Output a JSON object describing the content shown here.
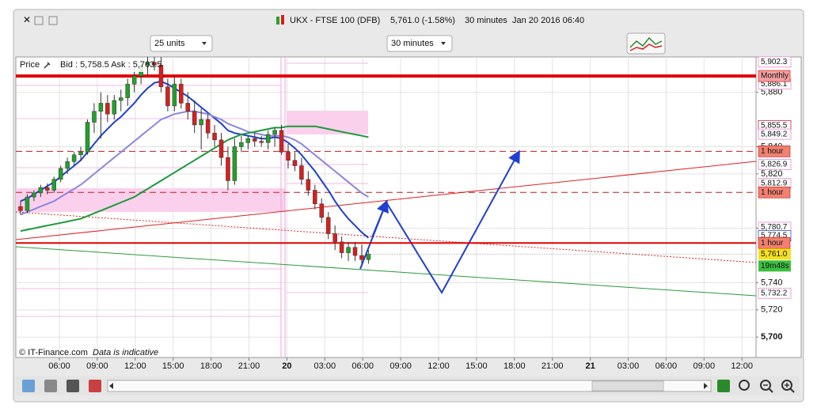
{
  "window": {
    "title": "UKX - FTSE 100 (DFB)",
    "quote": "5,761.0 (-1.58%)",
    "interval": "30 minutes",
    "timestamp": "Jan 20 2016 06:40"
  },
  "toolbar": {
    "units": "25 units",
    "timeframe": "30 minutes"
  },
  "chart_data": {
    "type": "candlestick",
    "price_label": "Price",
    "bid_ask": "Bid : 5,758.5 Ask : 5,763.5",
    "credit": "© IT-Finance.com",
    "disclaimer": "Data is indicative",
    "x_labels": [
      "06:00",
      "09:00",
      "12:00",
      "15:00",
      "18:00",
      "21:00",
      "20",
      "03:00",
      "06:00",
      "09:00",
      "12:00",
      "15:00",
      "18:00",
      "21:00",
      "21",
      "03:00",
      "06:00",
      "09:00",
      "12:00"
    ],
    "ylim": [
      5685,
      5906
    ],
    "yticks": [
      {
        "value": 5880,
        "label": "5,880"
      },
      {
        "value": 5840,
        "label": "5,840"
      },
      {
        "value": 5820,
        "label": "5,820"
      },
      {
        "value": 5780,
        "label": "5,780"
      },
      {
        "value": 5740,
        "label": "5,740"
      },
      {
        "value": 5720,
        "label": "5,720"
      },
      {
        "value": 5700,
        "label": "5,700"
      }
    ],
    "grid": true,
    "up_color": "#23a02b",
    "down_color": "#d42020",
    "candles": [
      [
        5796,
        5800,
        5790,
        5793
      ],
      [
        5793,
        5805,
        5791,
        5803
      ],
      [
        5803,
        5808,
        5800,
        5806
      ],
      [
        5806,
        5812,
        5803,
        5810
      ],
      [
        5810,
        5813,
        5805,
        5808
      ],
      [
        5808,
        5818,
        5806,
        5816
      ],
      [
        5816,
        5826,
        5814,
        5824
      ],
      [
        5824,
        5832,
        5820,
        5829
      ],
      [
        5829,
        5836,
        5826,
        5834
      ],
      [
        5834,
        5840,
        5830,
        5836
      ],
      [
        5836,
        5860,
        5834,
        5858
      ],
      [
        5858,
        5872,
        5850,
        5866
      ],
      [
        5866,
        5880,
        5846,
        5872
      ],
      [
        5872,
        5878,
        5858,
        5864
      ],
      [
        5864,
        5878,
        5860,
        5874
      ],
      [
        5874,
        5882,
        5866,
        5876
      ],
      [
        5876,
        5890,
        5870,
        5886
      ],
      [
        5886,
        5898,
        5880,
        5892
      ],
      [
        5892,
        5904,
        5886,
        5900
      ],
      [
        5900,
        5906,
        5892,
        5902
      ],
      [
        5902,
        5906,
        5896,
        5900
      ],
      [
        5900,
        5906,
        5880,
        5884
      ],
      [
        5884,
        5890,
        5866,
        5870
      ],
      [
        5870,
        5892,
        5866,
        5886
      ],
      [
        5886,
        5890,
        5868,
        5872
      ],
      [
        5872,
        5880,
        5860,
        5866
      ],
      [
        5866,
        5874,
        5850,
        5856
      ],
      [
        5856,
        5868,
        5838,
        5860
      ],
      [
        5860,
        5864,
        5846,
        5850
      ],
      [
        5850,
        5856,
        5840,
        5845
      ],
      [
        5845,
        5850,
        5826,
        5832
      ],
      [
        5832,
        5840,
        5808,
        5815
      ],
      [
        5815,
        5846,
        5812,
        5840
      ],
      [
        5840,
        5848,
        5836,
        5843
      ],
      [
        5843,
        5848,
        5838,
        5846
      ],
      [
        5846,
        5850,
        5840,
        5844
      ],
      [
        5844,
        5848,
        5840,
        5843
      ],
      [
        5843,
        5852,
        5838,
        5849
      ],
      [
        5849,
        5854,
        5840,
        5852
      ],
      [
        5852,
        5856,
        5834,
        5836
      ],
      [
        5836,
        5842,
        5824,
        5830
      ],
      [
        5830,
        5836,
        5822,
        5826
      ],
      [
        5826,
        5832,
        5812,
        5816
      ],
      [
        5816,
        5822,
        5804,
        5808
      ],
      [
        5808,
        5812,
        5794,
        5798
      ],
      [
        5798,
        5802,
        5784,
        5788
      ],
      [
        5788,
        5792,
        5772,
        5776
      ],
      [
        5776,
        5782,
        5764,
        5770
      ],
      [
        5770,
        5774,
        5758,
        5762
      ],
      [
        5762,
        5770,
        5756,
        5766
      ],
      [
        5766,
        5770,
        5756,
        5760
      ],
      [
        5760,
        5768,
        5754,
        5757
      ],
      [
        5757,
        5764,
        5754,
        5761
      ]
    ],
    "series": [
      {
        "color": "#1f3fd0",
        "values": [
          5800,
          5802,
          5805,
          5808,
          5811,
          5814,
          5818,
          5822,
          5826,
          5830,
          5836,
          5842,
          5848,
          5853,
          5858,
          5862,
          5867,
          5872,
          5878,
          5883,
          5887,
          5888,
          5886,
          5883,
          5880,
          5877,
          5873,
          5869,
          5865,
          5861,
          5857,
          5852,
          5850,
          5849,
          5848,
          5847,
          5846,
          5846,
          5847,
          5846,
          5843,
          5839,
          5834,
          5828,
          5822,
          5815,
          5808,
          5800,
          5793,
          5787,
          5782,
          5777,
          5773
        ]
      },
      {
        "color": "#8c86e0",
        "values": [
          5790,
          5792,
          5794,
          5796,
          5798,
          5800,
          5803,
          5806,
          5809,
          5812,
          5816,
          5820,
          5824,
          5828,
          5832,
          5836,
          5840,
          5844,
          5848,
          5852,
          5856,
          5860,
          5862,
          5864,
          5865,
          5866,
          5866,
          5865,
          5864,
          5862,
          5860,
          5857,
          5855,
          5853,
          5851,
          5850,
          5849,
          5848,
          5848,
          5848,
          5847,
          5845,
          5842,
          5838,
          5834,
          5830,
          5826,
          5822,
          5818,
          5814,
          5810,
          5806,
          5803
        ]
      },
      {
        "color": "#1a9a3a",
        "values": [
          5778,
          5779,
          5780,
          5781,
          5782,
          5783,
          5784,
          5785,
          5786,
          5787,
          5789,
          5791,
          5793,
          5795,
          5797,
          5799,
          5801,
          5803,
          5806,
          5809,
          5812,
          5815,
          5818,
          5821,
          5824,
          5827,
          5830,
          5833,
          5836,
          5839,
          5842,
          5845,
          5847,
          5849,
          5850,
          5851,
          5852,
          5853,
          5854,
          5854,
          5855,
          5855,
          5855,
          5855,
          5855,
          5854,
          5853,
          5852,
          5851,
          5850,
          5849,
          5848,
          5847
        ]
      }
    ],
    "levels": [
      {
        "label": "Monthly",
        "value": 5892,
        "color": "#e00000",
        "style": "solid",
        "width": 4
      },
      {
        "label": "1 hour",
        "value": 5836.6,
        "color": "#c41a1a",
        "style": "dashed",
        "width": 1
      },
      {
        "label": "1 hour",
        "value": 5806.4,
        "color": "#c41a1a",
        "style": "dashed",
        "width": 1
      },
      {
        "label": "1 hour",
        "value": 5769.2,
        "color": "#e00000",
        "style": "solid",
        "width": 2
      }
    ],
    "price_tags": [
      {
        "value": 5902.3,
        "label": "5,902.3",
        "color": "#e88ad0"
      },
      {
        "value": 5886.1,
        "label": "5,886.1",
        "color": "#e88ad0"
      },
      {
        "value": 5855.5,
        "label": "5,855.5",
        "color": "#c81e3c"
      },
      {
        "value": 5849.2,
        "label": "5,849.2",
        "color": "#e88ad0"
      },
      {
        "value": 5826.9,
        "label": "5,826.9",
        "color": "#e88ad0"
      },
      {
        "value": 5812.9,
        "label": "5,812.9",
        "color": "#e88ad0"
      },
      {
        "value": 5780.7,
        "label": "5,780.7",
        "color": "#e88ad0"
      },
      {
        "value": 5774.5,
        "label": "5,774.5",
        "color": "#3050d0"
      },
      {
        "value": 5732.2,
        "label": "5,732.2",
        "color": "#e88ad0"
      }
    ],
    "last_price": {
      "value": 5761.0,
      "label": "5,761.0",
      "color": "#f5e020"
    },
    "countdown": {
      "label": "19m48s",
      "color": "#3cc040"
    }
  }
}
